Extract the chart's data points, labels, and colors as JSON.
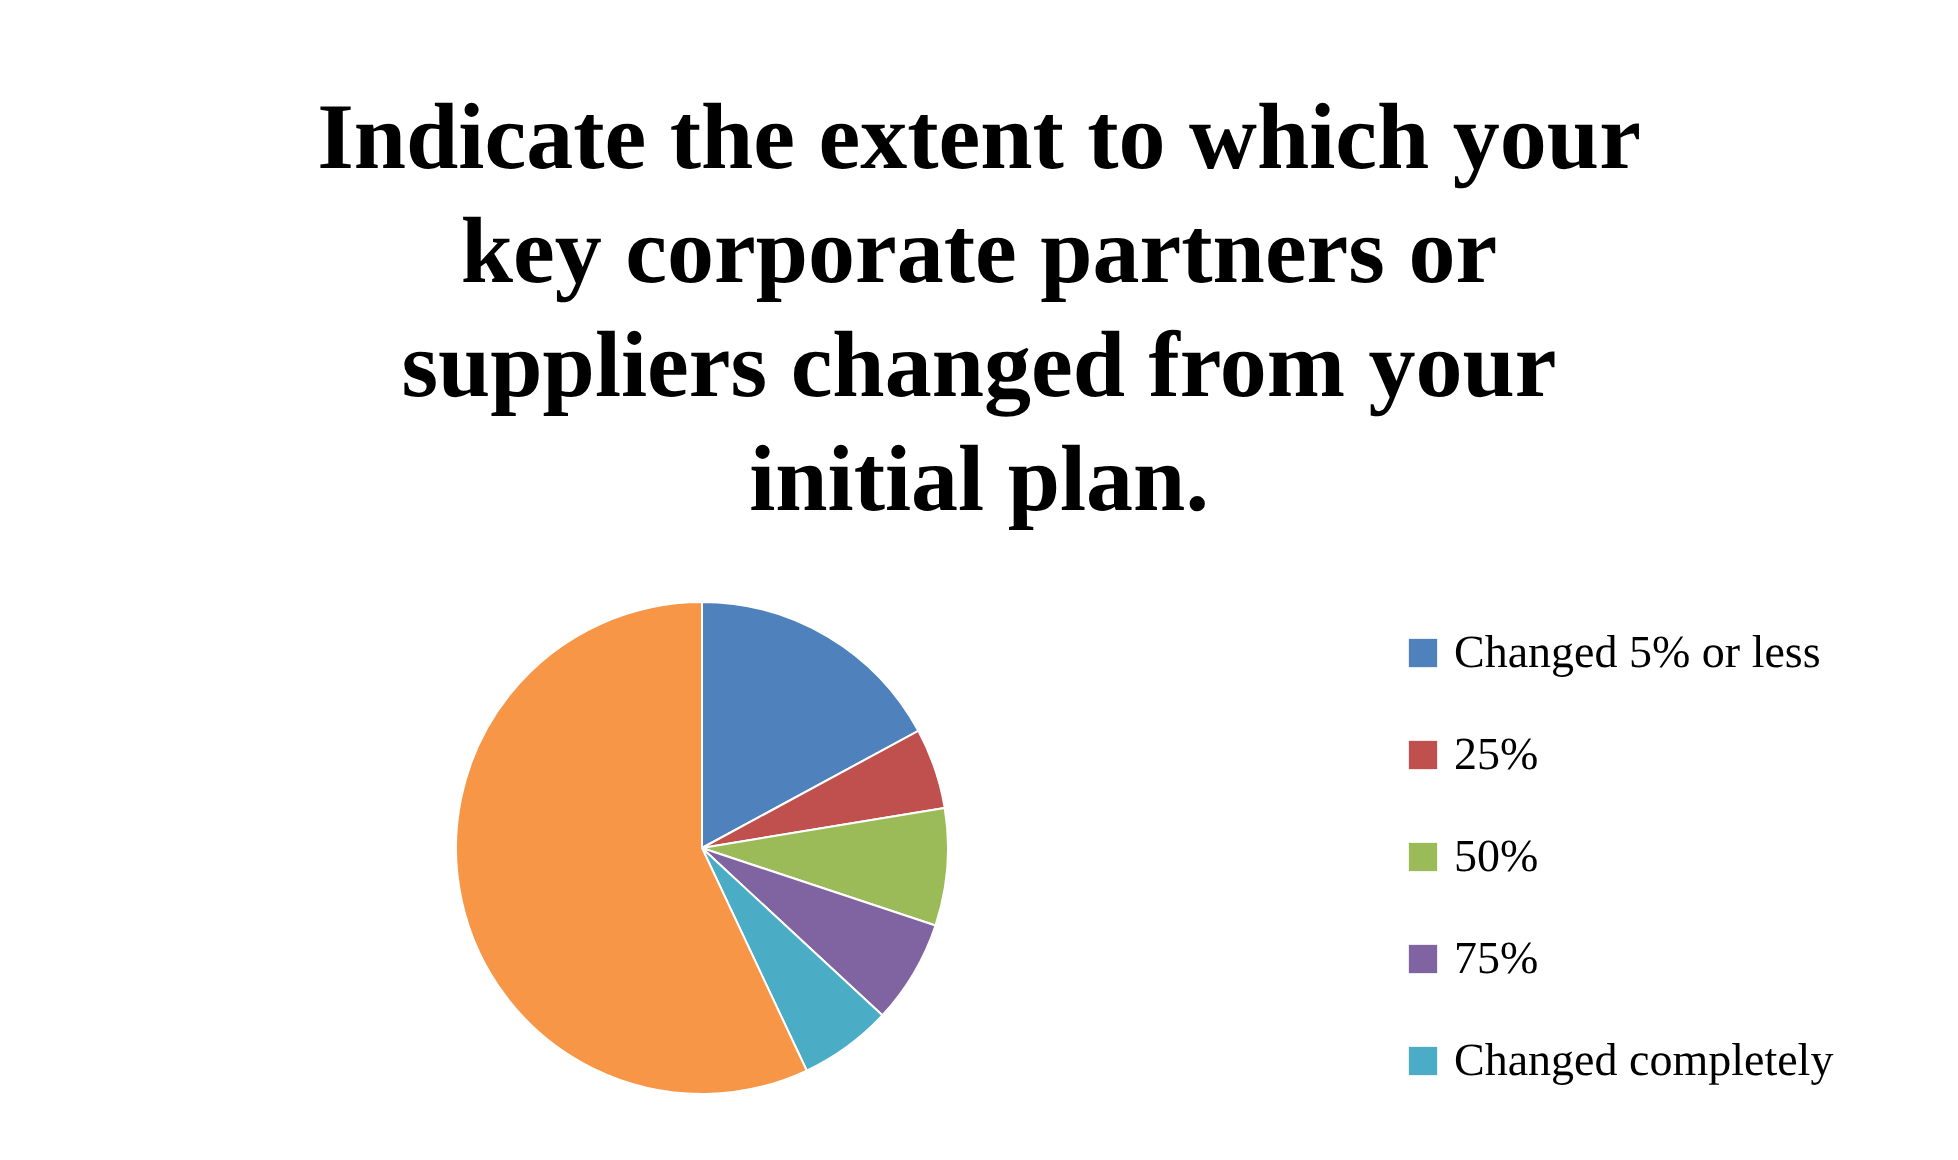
{
  "chart_data": {
    "type": "pie",
    "title": "Indicate the extent to which your key corporate partners or suppliers changed from your initial plan.",
    "categories": [
      "Changed 5% or less",
      "25%",
      "50%",
      "75%",
      "Changed completely",
      null
    ],
    "values": [
      17.1,
      5.3,
      7.7,
      6.8,
      6.1,
      57.0
    ],
    "colors": [
      "#4f81bd",
      "#c0504d",
      "#9bbb59",
      "#8064a2",
      "#4bacc6",
      "#f79646"
    ],
    "legend": "right"
  }
}
